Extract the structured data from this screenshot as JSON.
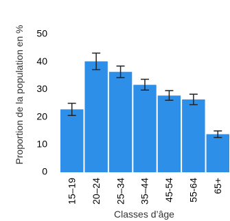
{
  "chart_data": {
    "type": "bar",
    "categories": [
      "15–19",
      "20–24",
      "25–34",
      "35–44",
      "45-54",
      "55-64",
      "65+"
    ],
    "values": [
      22.8,
      40.2,
      36.4,
      31.7,
      27.8,
      26.4,
      13.8
    ],
    "error_low": [
      20.6,
      37.2,
      34.3,
      29.8,
      26.1,
      24.5,
      12.6
    ],
    "error_high": [
      25.0,
      43.2,
      38.5,
      33.7,
      29.6,
      28.3,
      15.0
    ],
    "xlabel": "Classes d’âge",
    "ylabel": "Proportion de la population en %",
    "yticks": [
      "0",
      "10",
      "20",
      "30",
      "40",
      "50"
    ],
    "ylim": [
      0,
      50
    ],
    "grid": false,
    "bar_color": "#2e8fe8"
  }
}
